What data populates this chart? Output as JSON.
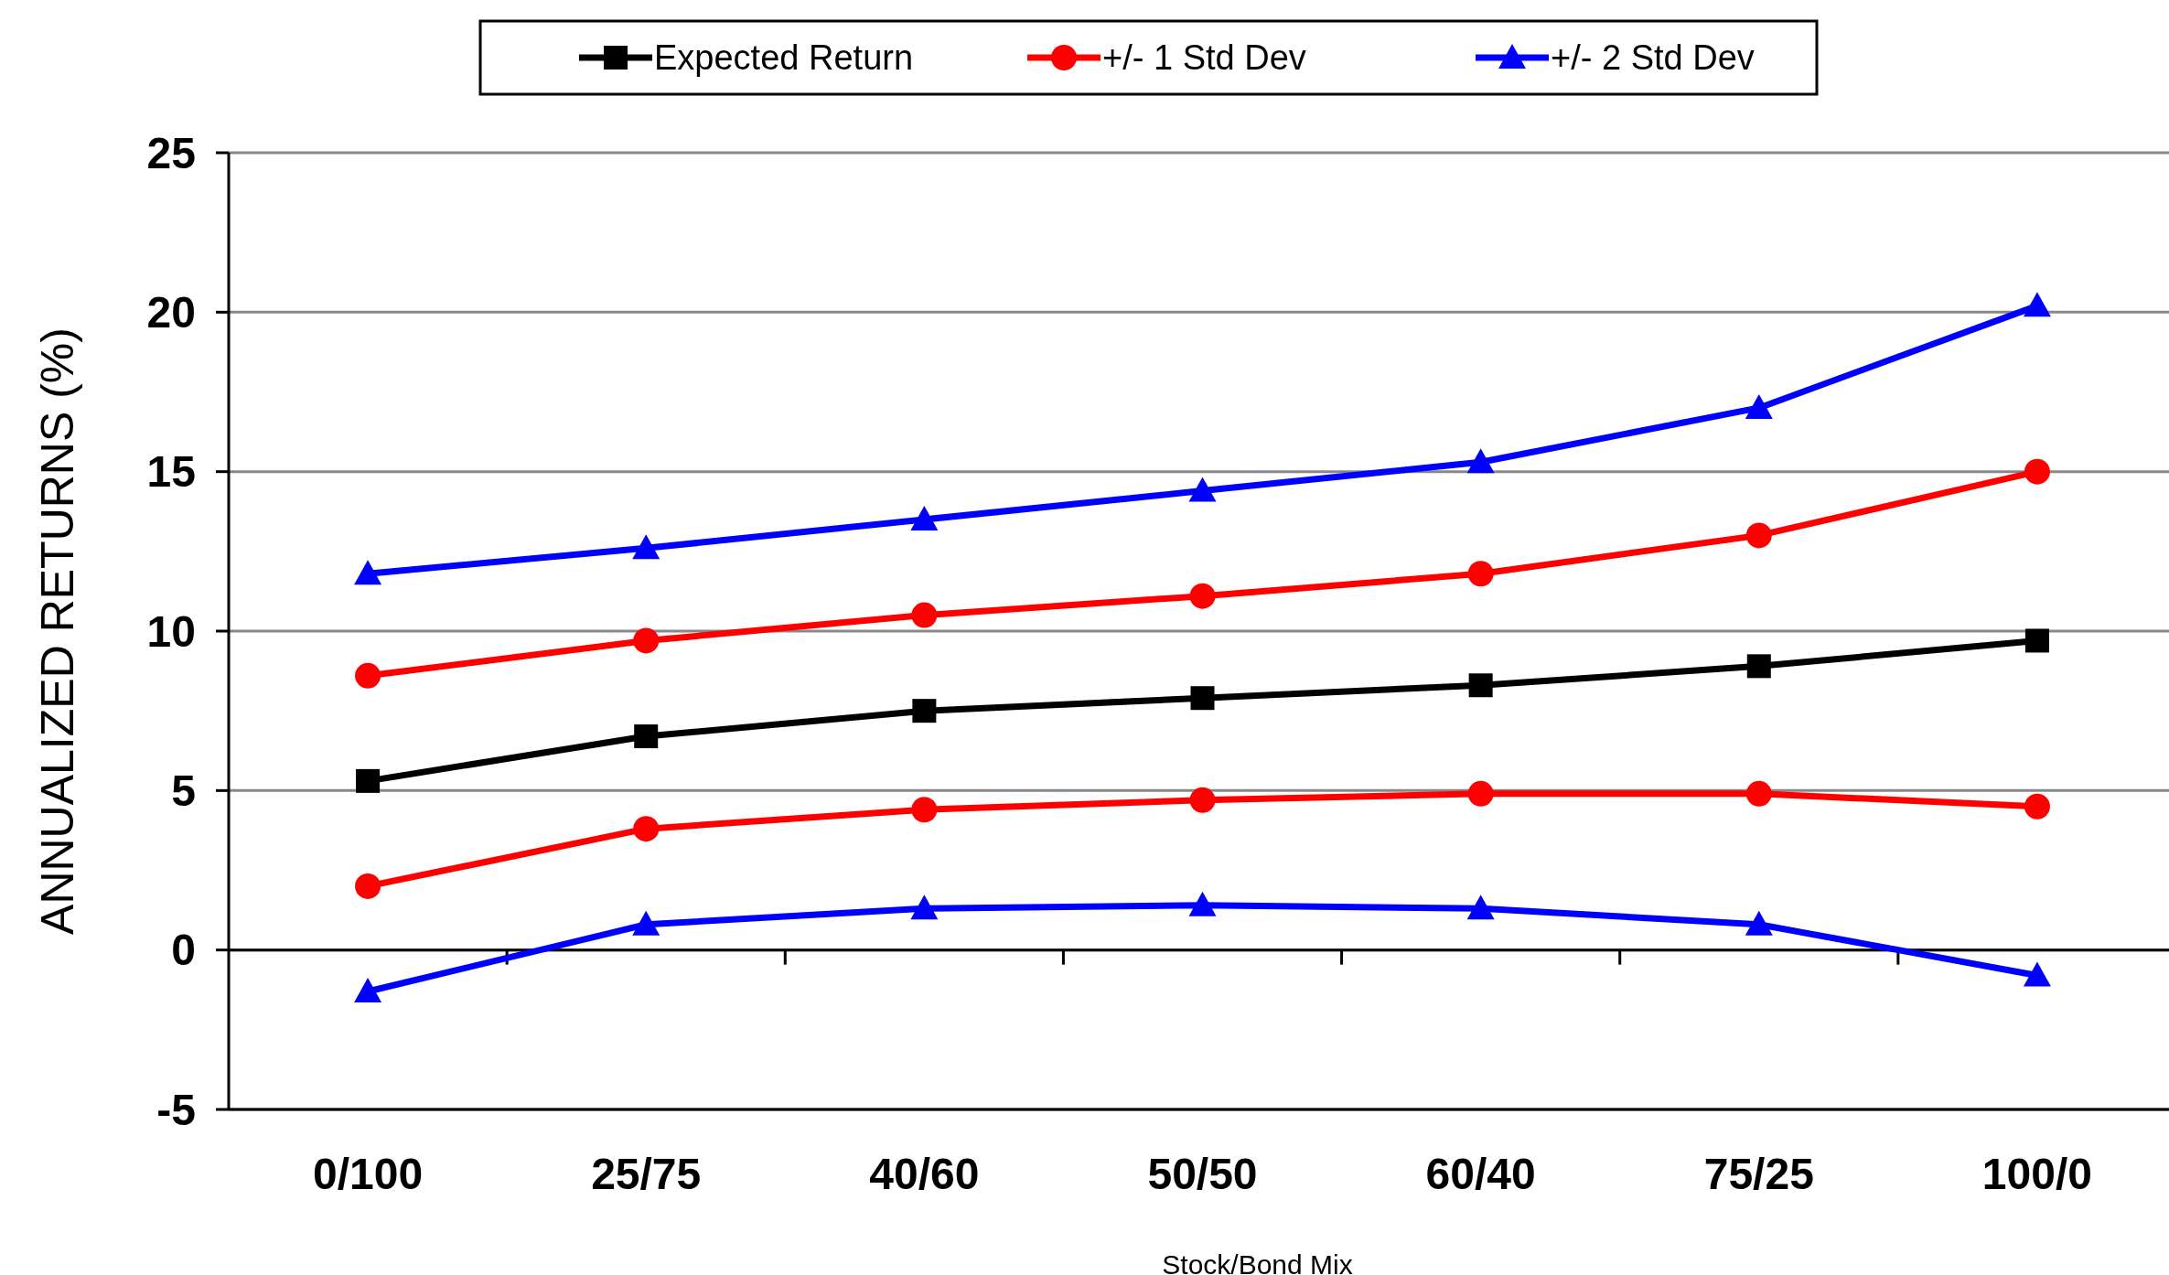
{
  "chart_data": {
    "type": "line",
    "xlabel": "Stock/Bond Mix",
    "ylabel": "ANNUALIZED RETURNS (%)",
    "categories": [
      "0/100",
      "25/75",
      "40/60",
      "50/50",
      "60/40",
      "75/25",
      "100/0"
    ],
    "series": [
      {
        "name": "Expected Return",
        "color": "#000000",
        "marker": "square",
        "values": [
          5.3,
          6.7,
          7.5,
          7.9,
          8.3,
          8.9,
          9.7
        ]
      },
      {
        "name": "+/- 1 Std Dev",
        "color": "#ff0000",
        "marker": "circle",
        "values": [
          8.6,
          9.7,
          10.5,
          11.1,
          11.8,
          13.0,
          15.0
        ]
      },
      {
        "color": "#ff0000",
        "marker": "circle",
        "values": [
          2.0,
          3.8,
          4.4,
          4.7,
          4.9,
          4.9,
          4.5
        ]
      },
      {
        "name": "+/- 2 Std Dev",
        "color": "#0000ff",
        "marker": "triangle",
        "values": [
          11.8,
          12.6,
          13.5,
          14.4,
          15.3,
          17.0,
          20.2
        ]
      },
      {
        "color": "#0000ff",
        "marker": "triangle",
        "values": [
          -1.3,
          0.8,
          1.3,
          1.4,
          1.3,
          0.8,
          -0.8
        ]
      }
    ],
    "ylim": [
      -5,
      25
    ],
    "yticks": [
      -5,
      0,
      5,
      10,
      15,
      20,
      25
    ],
    "grid": "y",
    "legend": "top"
  }
}
